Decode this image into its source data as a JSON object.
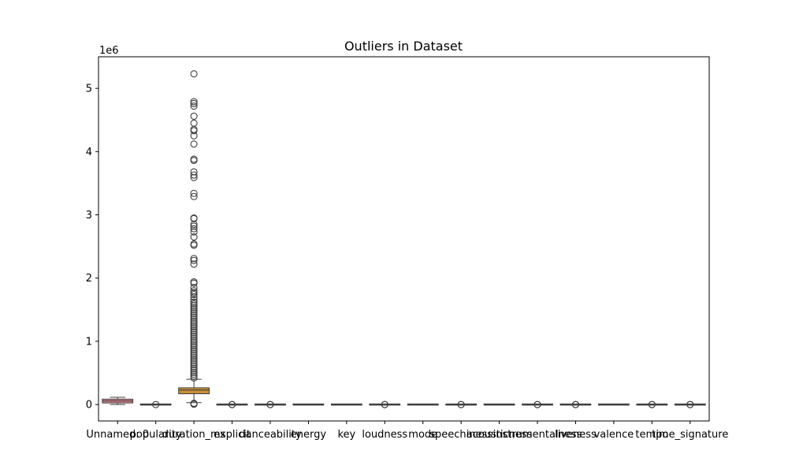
{
  "chart_data": {
    "type": "boxplot",
    "title": "Outliers in Dataset",
    "xlabel": "",
    "ylabel": "",
    "y_offset_label": "1e6",
    "ylim": [
      -0.26,
      5.5
    ],
    "y_unit_multiplier": 1000000,
    "y_ticks": [
      0,
      1,
      2,
      3,
      4,
      5
    ],
    "y_tick_labels": [
      "0",
      "1",
      "2",
      "3",
      "4",
      "5"
    ],
    "grid": false,
    "categories": [
      "Unnamed: 0",
      "popularity",
      "duration_ms",
      "explicit",
      "danceability",
      "energy",
      "key",
      "loudness",
      "mode",
      "speechiness",
      "acousticness",
      "instrumentalness",
      "liveness",
      "valence",
      "tempo",
      "time_signature"
    ],
    "boxes": [
      {
        "name": "Unnamed: 0",
        "color": "#e1818f",
        "whislo": 0.0,
        "q1": 0.025,
        "median": 0.057,
        "q3": 0.085,
        "whishi": 0.114,
        "fliers": []
      },
      {
        "name": "popularity",
        "color": "#c88f36",
        "whislo": 0,
        "q1": 0,
        "median": 0,
        "q3": 0,
        "whishi": 0,
        "fliers": [
          0
        ]
      },
      {
        "name": "duration_ms",
        "color": "#c88f36",
        "whislo": 0.03,
        "q1": 0.17,
        "median": 0.23,
        "q3": 0.265,
        "whishi": 0.4,
        "fliers": [
          5.23,
          4.79,
          4.76,
          4.72,
          4.56,
          4.45,
          4.35,
          4.33,
          4.25,
          4.12,
          3.88,
          3.86,
          3.68,
          3.63,
          3.59,
          3.34,
          3.29,
          2.95,
          2.94,
          2.85,
          2.82,
          2.78,
          2.73,
          2.65,
          2.54,
          2.52,
          2.31,
          2.28,
          2.22,
          1.94,
          1.92,
          1.85,
          1.8,
          1.77,
          1.74,
          1.7,
          1.66,
          1.62,
          1.59,
          1.56,
          1.53,
          1.5,
          1.47,
          1.44,
          1.41,
          1.38,
          1.35,
          1.32,
          1.29,
          1.26,
          1.23,
          1.2,
          1.17,
          1.14,
          1.11,
          1.08,
          1.05,
          1.02,
          0.99,
          0.96,
          0.93,
          0.9,
          0.87,
          0.84,
          0.81,
          0.78,
          0.75,
          0.72,
          0.69,
          0.66,
          0.63,
          0.6,
          0.57,
          0.54,
          0.51,
          0.48,
          0.45,
          0.42,
          0.02,
          0.01,
          0.005
        ]
      },
      {
        "name": "explicit",
        "color": "#9da638",
        "whislo": 0,
        "q1": 0,
        "median": 0,
        "q3": 0,
        "whishi": 0,
        "fliers": [
          0,
          0
        ]
      },
      {
        "name": "danceability",
        "color": "#55ae52",
        "whislo": 0,
        "q1": 0,
        "median": 0,
        "q3": 0,
        "whishi": 0,
        "fliers": [
          0,
          0
        ]
      },
      {
        "name": "energy",
        "color": "#3caa8c",
        "whislo": 0,
        "q1": 0,
        "median": 0,
        "q3": 0,
        "whishi": 0,
        "fliers": []
      },
      {
        "name": "key",
        "color": "#3ba8a8",
        "whislo": 0,
        "q1": 0,
        "median": 0,
        "q3": 0,
        "whishi": 0,
        "fliers": []
      },
      {
        "name": "loudness",
        "color": "#3ea6c2",
        "whislo": 0,
        "q1": 0,
        "median": 0,
        "q3": 0,
        "whishi": 0,
        "fliers": [
          0,
          0
        ]
      },
      {
        "name": "mode",
        "color": "#6c9be8",
        "whislo": 0,
        "q1": 0,
        "median": 0,
        "q3": 0,
        "whishi": 0,
        "fliers": []
      },
      {
        "name": "speechiness",
        "color": "#a78bf0",
        "whislo": 0,
        "q1": 0,
        "median": 0,
        "q3": 0,
        "whishi": 0,
        "fliers": [
          0,
          0
        ]
      },
      {
        "name": "acousticness",
        "color": "#d47ce9",
        "whislo": 0,
        "q1": 0,
        "median": 0,
        "q3": 0,
        "whishi": 0,
        "fliers": []
      },
      {
        "name": "instrumentalness",
        "color": "#e57ac6",
        "whislo": 0,
        "q1": 0,
        "median": 0,
        "q3": 0,
        "whishi": 0,
        "fliers": [
          0,
          0
        ]
      },
      {
        "name": "liveness",
        "color": "#e87fa6",
        "whislo": 0,
        "q1": 0,
        "median": 0,
        "q3": 0,
        "whishi": 0,
        "fliers": [
          0,
          0
        ]
      },
      {
        "name": "valence",
        "color": "#e6826f",
        "whislo": 0,
        "q1": 0,
        "median": 0,
        "q3": 0,
        "whishi": 0,
        "fliers": []
      },
      {
        "name": "tempo",
        "color": "#d18e3e",
        "whislo": 0,
        "q1": 0,
        "median": 0,
        "q3": 0,
        "whishi": 0,
        "fliers": [
          0,
          0
        ]
      },
      {
        "name": "time_signature",
        "color": "#a39b3a",
        "whislo": 0,
        "q1": 0,
        "median": 0,
        "q3": 0,
        "whishi": 0,
        "fliers": [
          0,
          0
        ]
      }
    ]
  }
}
